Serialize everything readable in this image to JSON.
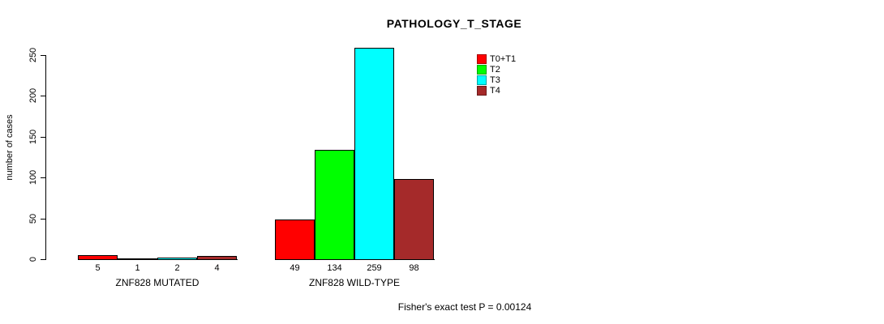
{
  "chart_data": {
    "type": "bar",
    "title": "PATHOLOGY_T_STAGE",
    "xlabel": "",
    "ylabel": "number of cases",
    "ylim": [
      0,
      250
    ],
    "yticks": [
      0,
      50,
      100,
      150,
      200,
      250
    ],
    "grid": false,
    "legend_position": "top-right",
    "categories": [
      "ZNF828 MUTATED",
      "ZNF828 WILD-TYPE"
    ],
    "series": [
      {
        "name": "T0+T1",
        "color": "#FF0000",
        "values": [
          5,
          49
        ]
      },
      {
        "name": "T2",
        "color": "#00FF00",
        "values": [
          1,
          134
        ]
      },
      {
        "name": "T3",
        "color": "#00FFFF",
        "values": [
          2,
          259
        ]
      },
      {
        "name": "T4",
        "color": "#A52A2A",
        "values": [
          4,
          98
        ]
      }
    ],
    "bar_value_labels": [
      [
        5,
        1,
        2,
        4
      ],
      [
        49,
        134,
        259,
        98
      ]
    ],
    "annotation": "Fisher's exact test P = 0.00124"
  }
}
